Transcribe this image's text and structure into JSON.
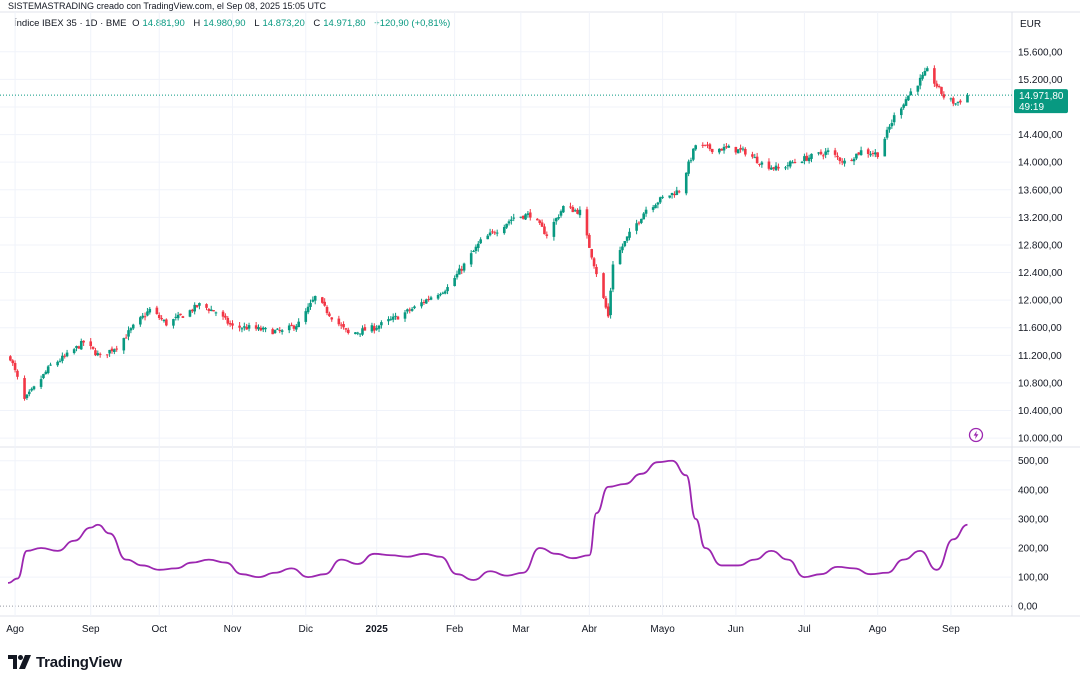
{
  "caption": "SISTEMASTRADING creado con TradingView.com, el Sep 08, 2025 15:05 UTC",
  "legend": {
    "symbol": "Índice IBEX 35 · 1D · BME",
    "o_label": "O",
    "o_value": "14.881,90",
    "h_label": "H",
    "h_value": "14.980,90",
    "l_label": "L",
    "l_value": "14.873,20",
    "c_label": "C",
    "c_value": "14.971,80",
    "change": "+120,90 (+0,81%)"
  },
  "currency": "EUR",
  "last_price": {
    "value": "14.971,80",
    "countdown": "49:19"
  },
  "brand": "TradingView",
  "colors": {
    "up": "#089981",
    "down": "#f23645",
    "indicator": "#9c27b0",
    "grid": "#f0f3fa",
    "last_badge": "#089981"
  },
  "chart_data": [
    {
      "type": "candlestick",
      "title": "Índice IBEX 35 · 1D · BME",
      "y_unit": "EUR",
      "ylim": [
        9900,
        15800
      ],
      "y_ticks": [
        10000,
        10400,
        10800,
        11200,
        11600,
        12000,
        12400,
        12800,
        13200,
        13600,
        14000,
        14400,
        14800,
        15200,
        15600
      ],
      "y_tick_labels": [
        "10.000,00",
        "10.400,00",
        "10.800,00",
        "11.200,00",
        "11.600,00",
        "12.000,00",
        "12.400,00",
        "12.800,00",
        "13.200,00",
        "13.600,00",
        "14.000,00",
        "14.400,00",
        "14.800,00",
        "15.200,00",
        "15.600,00"
      ],
      "x_labels": [
        "Ago",
        "Sep",
        "Oct",
        "Nov",
        "Dic",
        "2025",
        "Feb",
        "Mar",
        "Abr",
        "Mayo",
        "Jun",
        "Jul",
        "Ago",
        "Sep"
      ],
      "x_label_dates": [
        "2024-08-01",
        "2024-09-02",
        "2024-10-01",
        "2024-11-01",
        "2024-12-02",
        "2025-01-01",
        "2025-02-03",
        "2025-03-03",
        "2025-04-01",
        "2025-05-02",
        "2025-06-02",
        "2025-07-01",
        "2025-08-01",
        "2025-09-01"
      ],
      "x_range_dates": [
        "2024-07-29",
        "2025-09-26"
      ],
      "grid": true,
      "last_value": 14971.8,
      "approx_closes": [
        [
          "2024-07-30",
          11170
        ],
        [
          "2024-08-05",
          10550
        ],
        [
          "2024-08-09",
          10720
        ],
        [
          "2024-08-16",
          11050
        ],
        [
          "2024-08-23",
          11200
        ],
        [
          "2024-08-30",
          11390
        ],
        [
          "2024-09-06",
          11180
        ],
        [
          "2024-09-13",
          11330
        ],
        [
          "2024-09-20",
          11610
        ],
        [
          "2024-09-27",
          11860
        ],
        [
          "2024-10-04",
          11660
        ],
        [
          "2024-10-11",
          11780
        ],
        [
          "2024-10-18",
          11930
        ],
        [
          "2024-10-25",
          11830
        ],
        [
          "2024-11-01",
          11610
        ],
        [
          "2024-11-08",
          11600
        ],
        [
          "2024-11-15",
          11560
        ],
        [
          "2024-11-22",
          11540
        ],
        [
          "2024-11-29",
          11660
        ],
        [
          "2024-12-06",
          12040
        ],
        [
          "2024-12-13",
          11760
        ],
        [
          "2024-12-20",
          11510
        ],
        [
          "2024-12-31",
          11600
        ],
        [
          "2025-01-10",
          11760
        ],
        [
          "2025-01-17",
          11890
        ],
        [
          "2025-01-24",
          12050
        ],
        [
          "2025-01-31",
          12180
        ],
        [
          "2025-02-07",
          12510
        ],
        [
          "2025-02-14",
          12850
        ],
        [
          "2025-02-21",
          13020
        ],
        [
          "2025-02-28",
          13200
        ],
        [
          "2025-03-07",
          13240
        ],
        [
          "2025-03-14",
          12950
        ],
        [
          "2025-03-21",
          13350
        ],
        [
          "2025-03-28",
          13280
        ],
        [
          "2025-04-04",
          12400
        ],
        [
          "2025-04-09",
          11760
        ],
        [
          "2025-04-11",
          12540
        ],
        [
          "2025-04-17",
          12900
        ],
        [
          "2025-04-25",
          13320
        ],
        [
          "2025-05-02",
          13480
        ],
        [
          "2025-05-09",
          13590
        ],
        [
          "2025-05-16",
          14250
        ],
        [
          "2025-05-23",
          14190
        ],
        [
          "2025-05-30",
          14200
        ],
        [
          "2025-06-06",
          14150
        ],
        [
          "2025-06-13",
          13980
        ],
        [
          "2025-06-20",
          13900
        ],
        [
          "2025-06-27",
          14010
        ],
        [
          "2025-07-04",
          14080
        ],
        [
          "2025-07-11",
          14150
        ],
        [
          "2025-07-18",
          14000
        ],
        [
          "2025-07-25",
          14160
        ],
        [
          "2025-08-01",
          14120
        ],
        [
          "2025-08-08",
          14660
        ],
        [
          "2025-08-15",
          15020
        ],
        [
          "2025-08-22",
          15320
        ],
        [
          "2025-08-29",
          14950
        ],
        [
          "2025-09-03",
          14850
        ],
        [
          "2025-09-08",
          14971.8
        ]
      ]
    },
    {
      "type": "line",
      "ylim": [
        -20,
        530
      ],
      "y_ticks": [
        0,
        100,
        200,
        300,
        400,
        500
      ],
      "y_tick_labels": [
        "0,00",
        "100,00",
        "200,00",
        "300,00",
        "400,00",
        "500,00"
      ],
      "color": "#9c27b0",
      "points": [
        [
          "2024-07-29",
          80
        ],
        [
          "2024-08-02",
          95
        ],
        [
          "2024-08-06",
          190
        ],
        [
          "2024-08-12",
          200
        ],
        [
          "2024-08-19",
          190
        ],
        [
          "2024-08-26",
          225
        ],
        [
          "2024-09-02",
          270
        ],
        [
          "2024-09-05",
          280
        ],
        [
          "2024-09-10",
          250
        ],
        [
          "2024-09-17",
          160
        ],
        [
          "2024-09-24",
          140
        ],
        [
          "2024-10-01",
          125
        ],
        [
          "2024-10-08",
          130
        ],
        [
          "2024-10-15",
          150
        ],
        [
          "2024-10-22",
          160
        ],
        [
          "2024-10-29",
          150
        ],
        [
          "2024-11-05",
          110
        ],
        [
          "2024-11-12",
          100
        ],
        [
          "2024-11-19",
          115
        ],
        [
          "2024-11-26",
          130
        ],
        [
          "2024-12-03",
          100
        ],
        [
          "2024-12-10",
          110
        ],
        [
          "2024-12-17",
          160
        ],
        [
          "2024-12-24",
          145
        ],
        [
          "2024-12-31",
          180
        ],
        [
          "2025-01-07",
          175
        ],
        [
          "2025-01-14",
          170
        ],
        [
          "2025-01-21",
          180
        ],
        [
          "2025-01-28",
          170
        ],
        [
          "2025-02-04",
          110
        ],
        [
          "2025-02-11",
          90
        ],
        [
          "2025-02-18",
          120
        ],
        [
          "2025-02-25",
          105
        ],
        [
          "2025-03-04",
          115
        ],
        [
          "2025-03-11",
          200
        ],
        [
          "2025-03-18",
          180
        ],
        [
          "2025-03-25",
          165
        ],
        [
          "2025-04-01",
          175
        ],
        [
          "2025-04-04",
          320
        ],
        [
          "2025-04-09",
          410
        ],
        [
          "2025-04-16",
          420
        ],
        [
          "2025-04-23",
          455
        ],
        [
          "2025-04-30",
          495
        ],
        [
          "2025-05-06",
          500
        ],
        [
          "2025-05-12",
          450
        ],
        [
          "2025-05-16",
          300
        ],
        [
          "2025-05-20",
          200
        ],
        [
          "2025-05-27",
          140
        ],
        [
          "2025-06-03",
          140
        ],
        [
          "2025-06-10",
          160
        ],
        [
          "2025-06-17",
          190
        ],
        [
          "2025-06-24",
          160
        ],
        [
          "2025-07-01",
          100
        ],
        [
          "2025-07-08",
          110
        ],
        [
          "2025-07-15",
          135
        ],
        [
          "2025-07-22",
          130
        ],
        [
          "2025-07-29",
          110
        ],
        [
          "2025-08-05",
          115
        ],
        [
          "2025-08-12",
          160
        ],
        [
          "2025-08-19",
          190
        ],
        [
          "2025-08-26",
          125
        ],
        [
          "2025-09-02",
          230
        ],
        [
          "2025-09-08",
          280
        ]
      ]
    }
  ]
}
